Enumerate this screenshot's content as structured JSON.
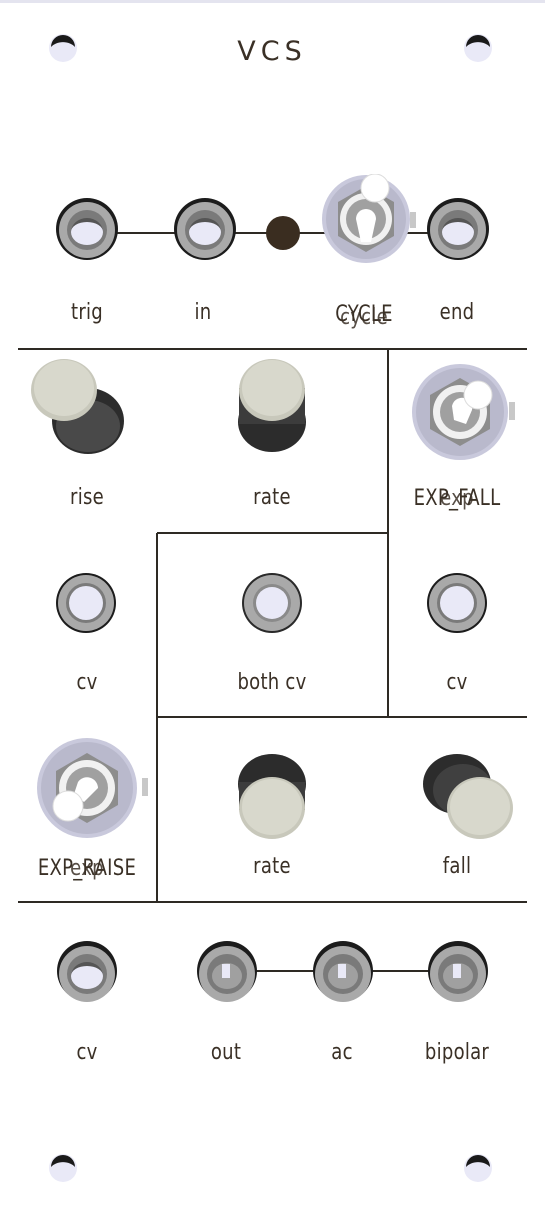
{
  "title": "VCS",
  "colors": {
    "ink": "#3a3026",
    "jack_outer": "#a9a9a9",
    "jack_hole": "#e9e9f7",
    "knob_cap": "#d8d8cc",
    "knob_body": "#404040",
    "led": "#3a2d20",
    "toggle_plate": "#c9c9dc"
  },
  "labels": {
    "trig": "trig",
    "in": "in",
    "cycle_a": "CYCLE",
    "cycle_b": "cycle",
    "end": "end",
    "rise": "rise",
    "rate_top": "rate",
    "exp_fall_a": "EXP_FALL",
    "exp_fall_b": "exp",
    "cv_left": "cv",
    "both_cv": "both cv",
    "cv_right": "cv",
    "exp_raise_a": "EXP_RAISE",
    "exp_raise_b": "exp",
    "rate_bottom": "rate",
    "fall": "fall",
    "cv_bottom": "cv",
    "out": "out",
    "ac": "ac",
    "bipolar": "bipolar"
  }
}
